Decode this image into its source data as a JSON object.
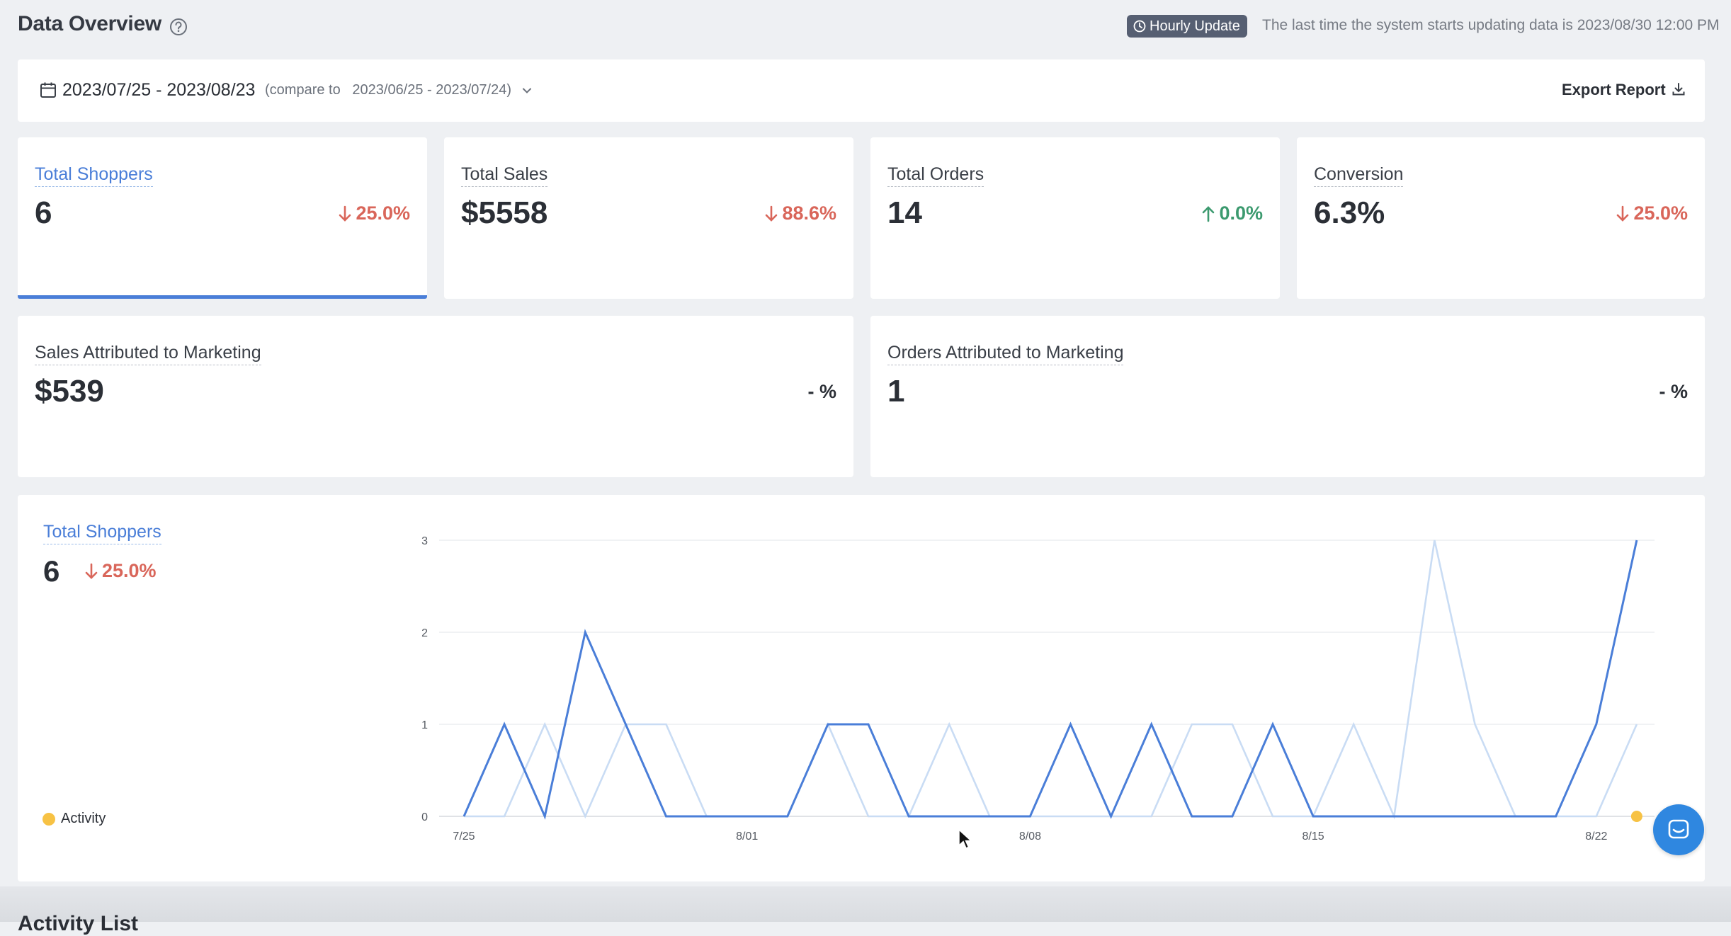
{
  "header": {
    "title": "Data Overview",
    "badge_label": "Hourly Update",
    "update_text": "The last time the system starts updating data is 2023/08/30 12:00 PM"
  },
  "date_filter": {
    "range": "2023/07/25 - 2023/08/23",
    "compare_prefix": "(compare to",
    "compare_range": "2023/06/25 - 2023/07/24)",
    "export_label": "Export Report"
  },
  "metrics": [
    {
      "label": "Total Shoppers",
      "value": "6",
      "delta": "25.0%",
      "direction": "down",
      "active": true
    },
    {
      "label": "Total Sales",
      "value": "$5558",
      "delta": "88.6%",
      "direction": "down",
      "active": false
    },
    {
      "label": "Total Orders",
      "value": "14",
      "delta": "0.0%",
      "direction": "up",
      "active": false
    },
    {
      "label": "Conversion",
      "value": "6.3%",
      "delta": "25.0%",
      "direction": "down",
      "active": false
    }
  ],
  "attribution": [
    {
      "label": "Sales Attributed to Marketing",
      "value": "$539",
      "delta": "- %"
    },
    {
      "label": "Orders Attributed to Marketing",
      "value": "1",
      "delta": "- %"
    }
  ],
  "chart_panel": {
    "label": "Total Shoppers",
    "value": "6",
    "delta": "25.0%",
    "legend_activity": "Activity"
  },
  "colors": {
    "current": "#4a7ed8",
    "previous": "#c9dcf4",
    "down": "#d9665a",
    "up": "#3c9a6f",
    "activity": "#f7c244"
  },
  "chart_data": {
    "type": "line",
    "x_tick_labels": [
      "7/25",
      "8/01",
      "8/08",
      "8/15",
      "8/22"
    ],
    "y_ticks": [
      0,
      1,
      2,
      3
    ],
    "ylim": [
      0,
      3
    ],
    "x_dates": [
      "7/25",
      "7/26",
      "7/27",
      "7/28",
      "7/29",
      "7/30",
      "7/31",
      "8/01",
      "8/02",
      "8/03",
      "8/04",
      "8/05",
      "8/06",
      "8/07",
      "8/08",
      "8/09",
      "8/10",
      "8/11",
      "8/12",
      "8/13",
      "8/14",
      "8/15",
      "8/16",
      "8/17",
      "8/18",
      "8/19",
      "8/20",
      "8/21",
      "8/22",
      "8/23"
    ],
    "series": [
      {
        "values": [
          0,
          1,
          0,
          2,
          1,
          0,
          0,
          0,
          0,
          1,
          1,
          0,
          0,
          0,
          0,
          1,
          0,
          1,
          0,
          0,
          1,
          0,
          0,
          0,
          0,
          0,
          0,
          0,
          1,
          3
        ]
      },
      {
        "values": [
          0,
          0,
          1,
          0,
          1,
          1,
          0,
          0,
          0,
          1,
          0,
          0,
          1,
          0,
          0,
          0,
          0,
          0,
          1,
          1,
          0,
          0,
          1,
          0,
          3,
          1,
          0,
          0,
          0,
          1
        ]
      }
    ],
    "activity_markers": [
      "8/23"
    ],
    "legend": [
      {
        "name": "Activity",
        "position": "bottom-left"
      }
    ],
    "grid": true
  },
  "footer": {
    "section_title": "Activity List"
  }
}
